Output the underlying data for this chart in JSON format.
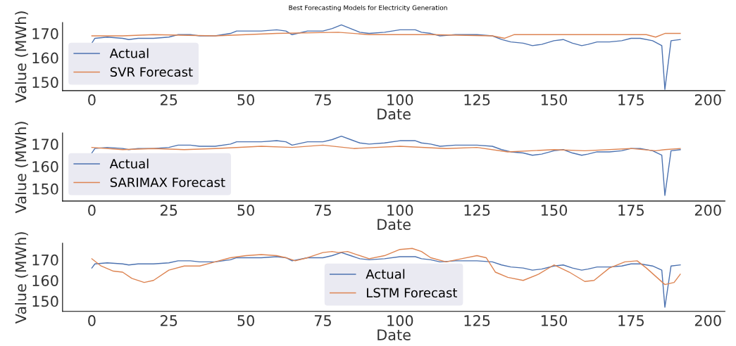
{
  "chart_data": [
    {
      "type": "line",
      "title": "Best Forecasting Models for Electricity Generation",
      "xlabel": "Date",
      "ylabel": "Value (MWh)",
      "xlim": [
        -9.5,
        205.5
      ],
      "xticks": [
        0,
        25,
        50,
        75,
        100,
        125,
        150,
        175,
        200
      ],
      "ylim": [
        146.5,
        174.5
      ],
      "yticks": [
        150,
        160,
        170
      ],
      "legend": "bottom left",
      "grid": false,
      "series": [
        {
          "name": "Actual",
          "color": "#4c72b0",
          "x": [
            0,
            1,
            5,
            10,
            12,
            15,
            20,
            25,
            28,
            32,
            35,
            40,
            45,
            47,
            50,
            55,
            60,
            63,
            65,
            70,
            75,
            78,
            81,
            84,
            87,
            90,
            95,
            100,
            105,
            107,
            110,
            113,
            118,
            125,
            130,
            133,
            136,
            140,
            143,
            146,
            150,
            153,
            156,
            159,
            161,
            164,
            168,
            172,
            175,
            178,
            182,
            185,
            186,
            188,
            191
          ],
          "values": [
            166,
            168,
            168.5,
            168,
            167.5,
            168,
            168,
            168.5,
            169.5,
            169.5,
            169,
            169,
            170,
            171,
            171,
            171,
            171.5,
            171,
            169.5,
            171,
            171,
            172,
            173.5,
            172,
            170.5,
            170,
            170.5,
            171.5,
            171.5,
            170.5,
            170,
            169,
            169.5,
            169.5,
            169,
            167.5,
            166.5,
            166,
            165,
            165.5,
            167,
            167.5,
            166,
            165,
            165.5,
            166.5,
            166.5,
            167,
            168,
            168,
            167,
            165,
            147,
            167,
            167.5
          ]
        },
        {
          "name": "SVR Forecast",
          "color": "#dd8452",
          "x": [
            0,
            10,
            20,
            40,
            60,
            80,
            90,
            110,
            130,
            134,
            137,
            150,
            180,
            183,
            186,
            191
          ],
          "values": [
            169,
            169,
            169.5,
            169,
            170,
            170.5,
            169.5,
            169.5,
            169,
            168,
            169.5,
            169.5,
            169.5,
            168.5,
            170,
            170
          ]
        }
      ]
    },
    {
      "type": "line",
      "xlabel": "Date",
      "ylabel": "Value (MWh)",
      "xlim": [
        -9.5,
        205.5
      ],
      "xticks": [
        0,
        25,
        50,
        75,
        100,
        125,
        150,
        175,
        200
      ],
      "ylim": [
        144.5,
        175
      ],
      "yticks": [
        150,
        160,
        170
      ],
      "legend": "bottom left",
      "grid": false,
      "series": [
        {
          "name": "Actual",
          "color": "#4c72b0",
          "x": [
            0,
            1,
            5,
            10,
            12,
            15,
            20,
            25,
            28,
            32,
            35,
            40,
            45,
            47,
            50,
            55,
            60,
            63,
            65,
            70,
            75,
            78,
            81,
            84,
            87,
            90,
            95,
            100,
            105,
            107,
            110,
            113,
            118,
            125,
            130,
            133,
            136,
            140,
            143,
            146,
            150,
            153,
            156,
            159,
            161,
            164,
            168,
            172,
            175,
            178,
            182,
            185,
            186,
            188,
            191
          ],
          "values": [
            166,
            168,
            168.5,
            168,
            167.5,
            168,
            168,
            168.5,
            169.5,
            169.5,
            169,
            169,
            170,
            171,
            171,
            171,
            171.5,
            171,
            169.5,
            171,
            171,
            172,
            173.5,
            172,
            170.5,
            170,
            170.5,
            171.5,
            171.5,
            170.5,
            170,
            169,
            169.5,
            169.5,
            169,
            167.5,
            166.5,
            166,
            165,
            165.5,
            167,
            167.5,
            166,
            165,
            165.5,
            166.5,
            166.5,
            167,
            168,
            168,
            167,
            165,
            147,
            167,
            167.5
          ]
        },
        {
          "name": "SARIMAX Forecast",
          "color": "#dd8452",
          "x": [
            0,
            10,
            20,
            30,
            40,
            55,
            65,
            75,
            85,
            100,
            115,
            125,
            135,
            150,
            160,
            175,
            183,
            186,
            191
          ],
          "values": [
            168.5,
            167.5,
            168,
            167.5,
            168,
            169,
            168.5,
            169.5,
            168,
            169,
            168,
            168.5,
            166.5,
            167.5,
            167,
            168,
            167,
            167.5,
            168
          ]
        }
      ]
    },
    {
      "type": "line",
      "xlabel": "Date",
      "ylabel": "Value (MWh)",
      "xlim": [
        -9.5,
        205.5
      ],
      "xticks": [
        0,
        25,
        50,
        75,
        100,
        125,
        150,
        175,
        200
      ],
      "ylim": [
        145,
        178
      ],
      "yticks": [
        150,
        160,
        170
      ],
      "legend": "bottom",
      "grid": false,
      "series": [
        {
          "name": "Actual",
          "color": "#4c72b0",
          "x": [
            0,
            1,
            5,
            10,
            12,
            15,
            20,
            25,
            28,
            32,
            35,
            40,
            45,
            47,
            50,
            55,
            60,
            63,
            65,
            70,
            75,
            78,
            81,
            84,
            87,
            90,
            95,
            100,
            105,
            107,
            110,
            113,
            118,
            125,
            130,
            133,
            136,
            140,
            143,
            146,
            150,
            153,
            156,
            159,
            161,
            164,
            168,
            172,
            175,
            178,
            182,
            185,
            186,
            188,
            191
          ],
          "values": [
            166,
            168,
            168.5,
            168,
            167.5,
            168,
            168,
            168.5,
            169.5,
            169.5,
            169,
            169,
            170,
            171,
            171,
            171,
            171.5,
            171,
            169.5,
            171,
            171,
            172,
            173.5,
            172,
            170.5,
            170,
            170.5,
            171.5,
            171.5,
            170.5,
            170,
            169,
            169.5,
            169.5,
            169,
            167.5,
            166.5,
            166,
            165,
            165.5,
            167,
            167.5,
            166,
            165,
            165.5,
            166.5,
            166.5,
            167,
            168,
            168,
            167,
            165,
            147,
            167,
            167.5
          ]
        },
        {
          "name": "LSTM Forecast",
          "color": "#dd8452",
          "x": [
            0,
            3,
            7,
            10,
            13,
            17,
            20,
            25,
            30,
            35,
            40,
            45,
            50,
            55,
            60,
            63,
            66,
            70,
            75,
            78,
            80,
            83,
            86,
            90,
            95,
            100,
            104,
            107,
            110,
            115,
            120,
            125,
            128,
            131,
            135,
            140,
            145,
            150,
            155,
            160,
            163,
            168,
            173,
            177,
            180,
            183,
            186,
            189,
            191
          ],
          "values": [
            170.5,
            167,
            164.5,
            164,
            161,
            159,
            160,
            165,
            167,
            167,
            169,
            171,
            172,
            172.5,
            172,
            171,
            169.5,
            171,
            173.5,
            174,
            173.5,
            174,
            172.5,
            170.5,
            172,
            175,
            175.5,
            174,
            171,
            169,
            170.5,
            172,
            171,
            164,
            161.5,
            160,
            163,
            167.5,
            164,
            159.5,
            160,
            166,
            169,
            169.5,
            166,
            162,
            158,
            159,
            163
          ]
        }
      ]
    }
  ]
}
